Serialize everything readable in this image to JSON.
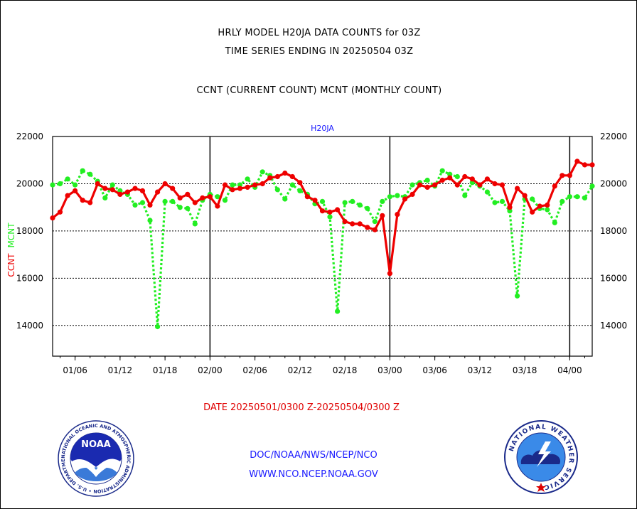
{
  "header": {
    "title_line1": "HRLY MODEL H20JA DATA COUNTS for 03Z",
    "title_line2": "TIME SERIES ENDING IN 20250504 03Z",
    "subtitle": "CCNT (CURRENT COUNT) MCNT (MONTHLY COUNT)"
  },
  "footer": {
    "date_range": "DATE 20250501/0300 Z-20250504/0300 Z",
    "org_path": "DOC/NOAA/NWS/NCEP/NCO",
    "website": "WWW.NCO.NCEP.NOAA.GOV"
  },
  "logos": {
    "noaa_text": "NOAA",
    "noaa_ring": "NATIONAL OCEANIC AND ATMOSPHERIC ADMINISTRATION • U.S. DEPARTMENT OF COMMERCE •",
    "nws_ring": "NATIONAL WEATHER SERVICE"
  },
  "colors": {
    "ccnt": "#ee0000",
    "mcnt": "#22ee22",
    "axis": "#000000",
    "plot_label": "#1a1aff"
  },
  "chart_data": {
    "type": "line",
    "plot_label": "H20JA",
    "ylabel_left": [
      "CCNT",
      "MCNT"
    ],
    "ylim": [
      12700,
      22000
    ],
    "y_ticks": [
      14000,
      16000,
      18000,
      20000,
      22000
    ],
    "x_ticks": [
      "01/06",
      "01/12",
      "01/18",
      "02/00",
      "02/06",
      "02/12",
      "02/18",
      "03/00",
      "03/06",
      "03/12",
      "03/18",
      "04/00"
    ],
    "x_tick_hours": [
      6,
      12,
      18,
      24,
      30,
      36,
      42,
      48,
      54,
      60,
      66,
      72
    ],
    "xlim_hours": [
      3,
      75
    ],
    "day_boundaries_hours": [
      24,
      48,
      72
    ],
    "grid_y": true,
    "series": [
      {
        "name": "CCNT",
        "x_hours": [
          3,
          4,
          5,
          6,
          7,
          8,
          9,
          10,
          11,
          12,
          13,
          14,
          15,
          16,
          17,
          18,
          19,
          20,
          21,
          22,
          23,
          24,
          25,
          26,
          27,
          28,
          29,
          30,
          31,
          32,
          33,
          34,
          35,
          36,
          37,
          38,
          39,
          40,
          41,
          42,
          43,
          44,
          45,
          46,
          47,
          48,
          49,
          50,
          51,
          52,
          53,
          54,
          55,
          56,
          57,
          58,
          59,
          60,
          61,
          62,
          63,
          64,
          65,
          66,
          67,
          68,
          69,
          70,
          71,
          72,
          73,
          74,
          75
        ],
        "values": [
          18550,
          18800,
          19500,
          19700,
          19300,
          19200,
          20000,
          19800,
          19750,
          19550,
          19650,
          19800,
          19700,
          19100,
          19650,
          20000,
          19800,
          19400,
          19550,
          19200,
          19400,
          19450,
          19050,
          19950,
          19750,
          19800,
          19850,
          19950,
          20000,
          20250,
          20300,
          20450,
          20300,
          20050,
          19450,
          19300,
          18850,
          18800,
          18900,
          18400,
          18300,
          18300,
          18150,
          18050,
          18650,
          16200,
          18700,
          19350,
          19550,
          19950,
          19850,
          19950,
          20150,
          20250,
          19950,
          20300,
          20200,
          19950,
          20200,
          20000,
          19950,
          19000,
          19800,
          19500,
          18800,
          19050,
          19100,
          19900,
          20350,
          20350,
          20950,
          20800,
          20800
        ]
      },
      {
        "name": "MCNT",
        "x_hours": [
          3,
          4,
          5,
          6,
          7,
          8,
          9,
          10,
          11,
          12,
          13,
          14,
          15,
          16,
          17,
          18,
          19,
          20,
          21,
          22,
          23,
          24,
          25,
          26,
          27,
          28,
          29,
          30,
          31,
          32,
          33,
          34,
          35,
          36,
          37,
          38,
          39,
          40,
          41,
          42,
          43,
          44,
          45,
          46,
          47,
          48,
          49,
          50,
          51,
          52,
          53,
          54,
          55,
          56,
          57,
          58,
          59,
          60,
          61,
          62,
          63,
          64,
          65,
          66,
          67,
          68,
          69,
          70,
          71,
          72,
          73,
          74,
          75
        ],
        "values": [
          19950,
          20000,
          20200,
          19950,
          20550,
          20400,
          20100,
          19400,
          19950,
          19700,
          19550,
          19100,
          19200,
          18450,
          13950,
          19250,
          19250,
          19000,
          18950,
          18300,
          19300,
          19550,
          19450,
          19300,
          19950,
          19950,
          20200,
          19850,
          20500,
          20350,
          19750,
          19350,
          19950,
          19700,
          19550,
          19150,
          19250,
          18600,
          14600,
          19200,
          19250,
          19100,
          18950,
          18400,
          19250,
          19450,
          19500,
          19450,
          19950,
          20050,
          20150,
          19900,
          20550,
          20400,
          20300,
          19500,
          20050,
          19900,
          19650,
          19200,
          19250,
          18850,
          15250,
          19350,
          19350,
          18950,
          18900,
          18350,
          19250,
          19450,
          19450,
          19400,
          19900
        ]
      }
    ]
  }
}
